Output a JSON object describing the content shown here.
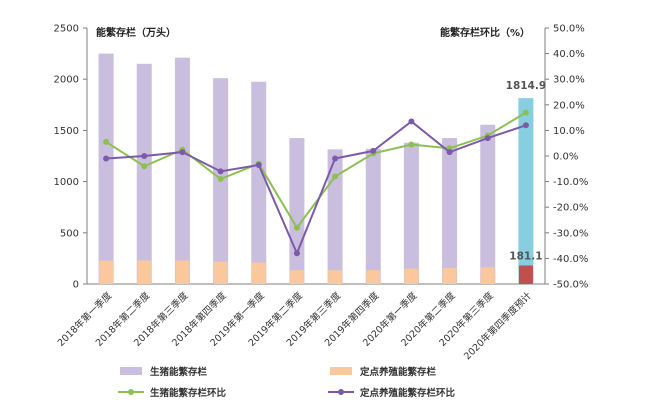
{
  "chart_data": {
    "type": "bar",
    "left_axis_title": "能繁存栏（万头）",
    "right_axis_title": "能繁存栏环比（%）",
    "categories": [
      "2018年第一季度",
      "2018年第二季度",
      "2018年第三季度",
      "2018年第四季度",
      "2019年第一季度",
      "2019年第二季度",
      "2019年第三季度",
      "2019年第四季度",
      "2020年第一季度",
      "2020年第二季度",
      "2020年第三季度",
      "2020年第四季度预计"
    ],
    "yticks_left": [
      "0",
      "500",
      "1000",
      "1500",
      "2000",
      "2500"
    ],
    "yticks_right": [
      "-50.0%",
      "-40.0%",
      "-30.0%",
      "-20.0%",
      "-10.0%",
      "0.0%",
      "10.0%",
      "20.0%",
      "30.0%",
      "40.0%",
      "50.0%"
    ],
    "ylim_left": [
      0,
      2500
    ],
    "ylim_right": [
      -50,
      50
    ],
    "series": [
      {
        "name": "生猪能繁存栏",
        "type": "bar",
        "axis": "left",
        "color": "#c9bedd",
        "highlight_color": "#87cfe0",
        "values": [
          2250,
          2150,
          2210,
          2010,
          1975,
          1425,
          1315,
          1320,
          1380,
          1425,
          1555,
          1814.9
        ]
      },
      {
        "name": "定点养殖能繁存栏",
        "type": "bar",
        "axis": "left",
        "color": "#fbc79c",
        "highlight_color": "#c0504d",
        "values": [
          228,
          230,
          230,
          218,
          210,
          135,
          135,
          135,
          150,
          155,
          165,
          181.1
        ]
      },
      {
        "name": "生猪能繁存栏环比",
        "type": "line",
        "axis": "right",
        "color": "#8cc152",
        "values": [
          5.5,
          -4,
          2.5,
          -9,
          -3,
          -28,
          -8,
          1,
          4.5,
          3,
          8,
          17
        ]
      },
      {
        "name": "定点养殖能繁存栏环比",
        "type": "line",
        "axis": "right",
        "color": "#7d5aa8",
        "values": [
          -1,
          0,
          1.5,
          -6,
          -3.5,
          -38,
          -1,
          2,
          13.5,
          1.5,
          7,
          12
        ]
      }
    ],
    "data_labels": [
      "1814.9",
      "181.1"
    ],
    "legend_position": "bottom",
    "grid": false
  }
}
